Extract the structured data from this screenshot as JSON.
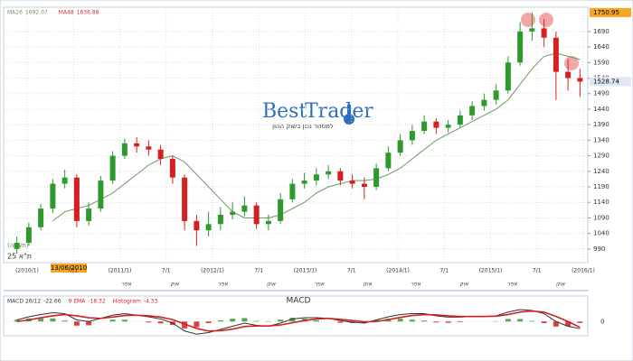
{
  "chart_data": {
    "type": "candlestick",
    "logo": {
      "first": "Best",
      "second": "Trader",
      "subtitle": "למסחר נכון בשוק ההון"
    },
    "indicators": [
      {
        "name": "MA26",
        "value": 1692.07,
        "color": "#6f8f6f"
      },
      {
        "name": "MA48",
        "value": 1636.88,
        "color": "#d03030"
      }
    ],
    "ma": {
      "color": "#6c9b5e",
      "values": [
        null,
        null,
        null,
        1080,
        1110,
        1120,
        1130,
        1150,
        1170,
        1200,
        1230,
        1260,
        1280,
        1290,
        1270,
        1230,
        1190,
        1150,
        1110,
        1090,
        1090,
        1090,
        1100,
        1120,
        1140,
        1170,
        1190,
        1200,
        1210,
        1210,
        1215,
        1230,
        1250,
        1280,
        1310,
        1340,
        1360,
        1380,
        1400,
        1420,
        1440,
        1470,
        1520,
        1570,
        1610,
        1620,
        1610,
        1600
      ]
    },
    "candles": [
      [
        990,
        1030,
        975,
        1010
      ],
      [
        1010,
        1075,
        1000,
        1060
      ],
      [
        1060,
        1135,
        1050,
        1120
      ],
      [
        1120,
        1215,
        1105,
        1200
      ],
      [
        1200,
        1245,
        1185,
        1220
      ],
      [
        1220,
        1230,
        1060,
        1080
      ],
      [
        1080,
        1140,
        1065,
        1120
      ],
      [
        1120,
        1225,
        1110,
        1210
      ],
      [
        1210,
        1305,
        1200,
        1290
      ],
      [
        1290,
        1345,
        1280,
        1330
      ],
      [
        1330,
        1350,
        1300,
        1320
      ],
      [
        1320,
        1340,
        1290,
        1310
      ],
      [
        1310,
        1325,
        1260,
        1280
      ],
      [
        1280,
        1290,
        1200,
        1220
      ],
      [
        1220,
        1230,
        1050,
        1080
      ],
      [
        1080,
        1100,
        1000,
        1050
      ],
      [
        1050,
        1110,
        1030,
        1070
      ],
      [
        1070,
        1125,
        1050,
        1100
      ],
      [
        1100,
        1140,
        1085,
        1110
      ],
      [
        1110,
        1160,
        1095,
        1130
      ],
      [
        1130,
        1140,
        1055,
        1070
      ],
      [
        1070,
        1100,
        1050,
        1080
      ],
      [
        1080,
        1170,
        1070,
        1150
      ],
      [
        1150,
        1215,
        1140,
        1200
      ],
      [
        1200,
        1235,
        1185,
        1210
      ],
      [
        1210,
        1250,
        1195,
        1230
      ],
      [
        1230,
        1260,
        1215,
        1240
      ],
      [
        1240,
        1250,
        1195,
        1210
      ],
      [
        1210,
        1230,
        1185,
        1200
      ],
      [
        1200,
        1220,
        1150,
        1190
      ],
      [
        1190,
        1265,
        1180,
        1250
      ],
      [
        1250,
        1320,
        1240,
        1300
      ],
      [
        1300,
        1360,
        1290,
        1340
      ],
      [
        1340,
        1390,
        1325,
        1370
      ],
      [
        1370,
        1420,
        1360,
        1400
      ],
      [
        1400,
        1410,
        1360,
        1380
      ],
      [
        1380,
        1405,
        1365,
        1390
      ],
      [
        1390,
        1435,
        1380,
        1420
      ],
      [
        1420,
        1465,
        1405,
        1450
      ],
      [
        1450,
        1490,
        1435,
        1470
      ],
      [
        1470,
        1520,
        1455,
        1500
      ],
      [
        1500,
        1610,
        1490,
        1590
      ],
      [
        1590,
        1720,
        1580,
        1690
      ],
      [
        1690,
        1750.95,
        1660,
        1700
      ],
      [
        1700,
        1730,
        1640,
        1670
      ],
      [
        1670,
        1690,
        1470,
        1560
      ],
      [
        1560,
        1600,
        1500,
        1540
      ],
      [
        1540,
        1570,
        1480,
        1528.74
      ]
    ],
    "up_color": "#2e9a2e",
    "down_color": "#d42020",
    "ylim": [
      949,
      1768
    ],
    "yticks": [
      990,
      1040,
      1090,
      1140,
      1190,
      1240,
      1290,
      1340,
      1390,
      1440,
      1490,
      1540,
      1590,
      1640,
      1690
    ],
    "grid": true,
    "x_labels_top": [
      "(2010/1)",
      "7/1",
      "(2011/1)",
      "7/1",
      "(2012/1)",
      "7/1",
      "(2013/1)",
      "7/1",
      "(2014/1)",
      "7/1",
      "(2015/1)",
      "7/1",
      "(2016/1)"
    ],
    "x_labels_bottom": [
      "אפר",
      "אוק",
      "אפר",
      "אוק",
      "אפר",
      "אוק",
      "אפר",
      "אוק",
      "אפר",
      "אוק"
    ],
    "cursor_date": "13/06/2010",
    "index_name": "ת\"א 25",
    "view_note": "(תצוגה)",
    "macd": {
      "title": "MACD",
      "ylim": [
        -45,
        75
      ],
      "yticks": [
        0
      ],
      "series": [
        {
          "name": "MACD 26/12",
          "color": "#333333",
          "values": [
            5,
            15,
            22,
            28,
            25,
            5,
            0,
            10,
            20,
            25,
            20,
            15,
            8,
            -5,
            -30,
            -40,
            -35,
            -25,
            -15,
            -5,
            -12,
            -15,
            -5,
            8,
            12,
            12,
            10,
            3,
            -2,
            -5,
            5,
            15,
            22,
            25,
            25,
            18,
            14,
            14,
            16,
            16,
            18,
            30,
            38,
            35,
            25,
            0,
            -15,
            -22.66
          ]
        },
        {
          "name": "9 EMA",
          "color": "#d42020",
          "values": [
            0,
            5,
            12,
            18,
            22,
            18,
            12,
            10,
            14,
            19,
            20,
            18,
            14,
            6,
            -8,
            -22,
            -30,
            -29,
            -24,
            -16,
            -14,
            -14,
            -11,
            -4,
            3,
            8,
            10,
            7,
            3,
            -1,
            0,
            6,
            13,
            19,
            22,
            21,
            18,
            16,
            16,
            16,
            17,
            22,
            30,
            33,
            30,
            16,
            0,
            -18.32
          ]
        },
        {
          "name": "Histogram",
          "color": "#d42020",
          "pos_color": "#3a9a3a",
          "neg_color": "#d42020",
          "values": [
            5,
            10,
            10,
            10,
            3,
            -13,
            -12,
            0,
            6,
            6,
            0,
            -3,
            -6,
            -11,
            -22,
            -18,
            -5,
            4,
            9,
            11,
            2,
            -1,
            6,
            12,
            9,
            4,
            0,
            -4,
            -5,
            -4,
            5,
            9,
            9,
            6,
            3,
            -3,
            -4,
            -2,
            0,
            0,
            1,
            8,
            8,
            2,
            -5,
            -16,
            -15,
            -4.33
          ]
        }
      ]
    }
  }
}
